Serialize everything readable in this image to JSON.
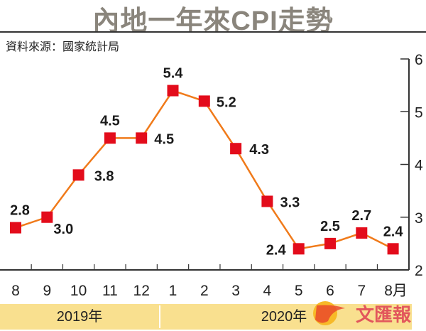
{
  "chart_data": {
    "type": "line",
    "title": "內地一年來CPI走勢",
    "source": "資料來源：國家統計局",
    "categories": [
      "8",
      "9",
      "10",
      "11",
      "12",
      "1",
      "2",
      "3",
      "4",
      "5",
      "6",
      "7",
      "8月"
    ],
    "series": [
      {
        "name": "CPI",
        "values": [
          2.8,
          3.0,
          3.8,
          4.5,
          4.5,
          5.4,
          5.2,
          4.3,
          3.3,
          2.4,
          2.5,
          2.7,
          2.4
        ]
      }
    ],
    "data_labels": [
      "2.8",
      "3.0",
      "3.8",
      "4.5",
      "4.5",
      "5.4",
      "5.2",
      "4.3",
      "3.3",
      "2.4",
      "2.5",
      "2.7",
      "2.4"
    ],
    "ylim": [
      2,
      6
    ],
    "yticks": [
      "2",
      "3",
      "4",
      "5",
      "6"
    ],
    "y_axis_side": "right",
    "years": [
      "2019年",
      "2020年"
    ],
    "line_color": "#f07a1a",
    "marker_color": "#e30c1b",
    "band_color": "#f9e08f",
    "logo_text": "文匯報"
  }
}
